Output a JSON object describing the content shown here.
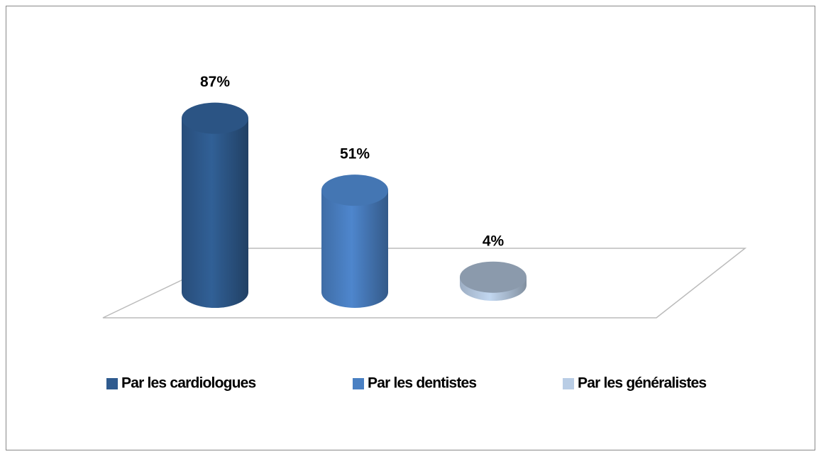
{
  "chart_data": {
    "type": "bar",
    "series": [
      {
        "name": "Par les cardiologues",
        "color": "#2f5b8f",
        "values": [
          87
        ],
        "value_labels": [
          "87%"
        ]
      },
      {
        "name": "Par les dentistes",
        "color": "#4a80c3",
        "values": [
          51
        ],
        "value_labels": [
          "51%"
        ]
      },
      {
        "name": "Par les généralistes",
        "color": "#b9cde5",
        "values": [
          4
        ],
        "value_labels": [
          "4%"
        ]
      }
    ]
  }
}
